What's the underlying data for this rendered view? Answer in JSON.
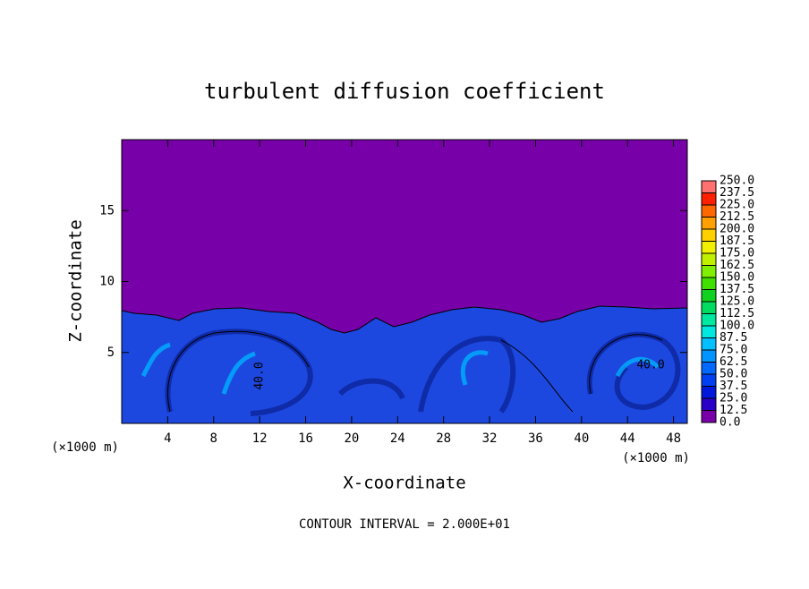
{
  "chart_data": {
    "type": "contour",
    "title": "turbulent diffusion coefficient",
    "xlabel": "X-coordinate",
    "ylabel": "Z-coordinate",
    "x_unit": "(×1000 m)",
    "y_unit": "(×1000 m)",
    "annotation": "CONTOUR INTERVAL = 2.000E+01",
    "contour_labels": [
      "40.0",
      "40.0"
    ],
    "xlim": [
      0,
      49.2
    ],
    "xticks": [
      4,
      8,
      12,
      16,
      20,
      24,
      28,
      32,
      36,
      40,
      44,
      48
    ],
    "ylim": [
      0,
      20
    ],
    "yticks": [
      5,
      10,
      15
    ],
    "colorbar": {
      "levels": [
        {
          "value": 0,
          "label": "0.0"
        },
        {
          "value": 12.5,
          "label": "12.5"
        },
        {
          "value": 25,
          "label": "25.0"
        },
        {
          "value": 37.5,
          "label": "37.5"
        },
        {
          "value": 50,
          "label": "50.0"
        },
        {
          "value": 62.5,
          "label": "62.5"
        },
        {
          "value": 75,
          "label": "75.0"
        },
        {
          "value": 87.5,
          "label": "87.5"
        },
        {
          "value": 100,
          "label": "100.0"
        },
        {
          "value": 112.5,
          "label": "112.5"
        },
        {
          "value": 125,
          "label": "125.0"
        },
        {
          "value": 137.5,
          "label": "137.5"
        },
        {
          "value": 150,
          "label": "150.0"
        },
        {
          "value": 162.5,
          "label": "162.5"
        },
        {
          "value": 175,
          "label": "175.0"
        },
        {
          "value": 187.5,
          "label": "187.5"
        },
        {
          "value": 200,
          "label": "200.0"
        },
        {
          "value": 212.5,
          "label": "212.5"
        },
        {
          "value": 225,
          "label": "225.0"
        },
        {
          "value": 237.5,
          "label": "237.5"
        },
        {
          "value": 250,
          "label": "250.0"
        }
      ],
      "colors": [
        "#7800a8",
        "#2a00c8",
        "#0018dc",
        "#0040f0",
        "#0068ff",
        "#0094ff",
        "#00c0ff",
        "#00e8e0",
        "#00e8a0",
        "#00dc60",
        "#10d020",
        "#40e000",
        "#80f000",
        "#c0f000",
        "#f0f000",
        "#ffd000",
        "#ffa000",
        "#ff6800",
        "#ff2000",
        "#ff7070"
      ]
    }
  }
}
